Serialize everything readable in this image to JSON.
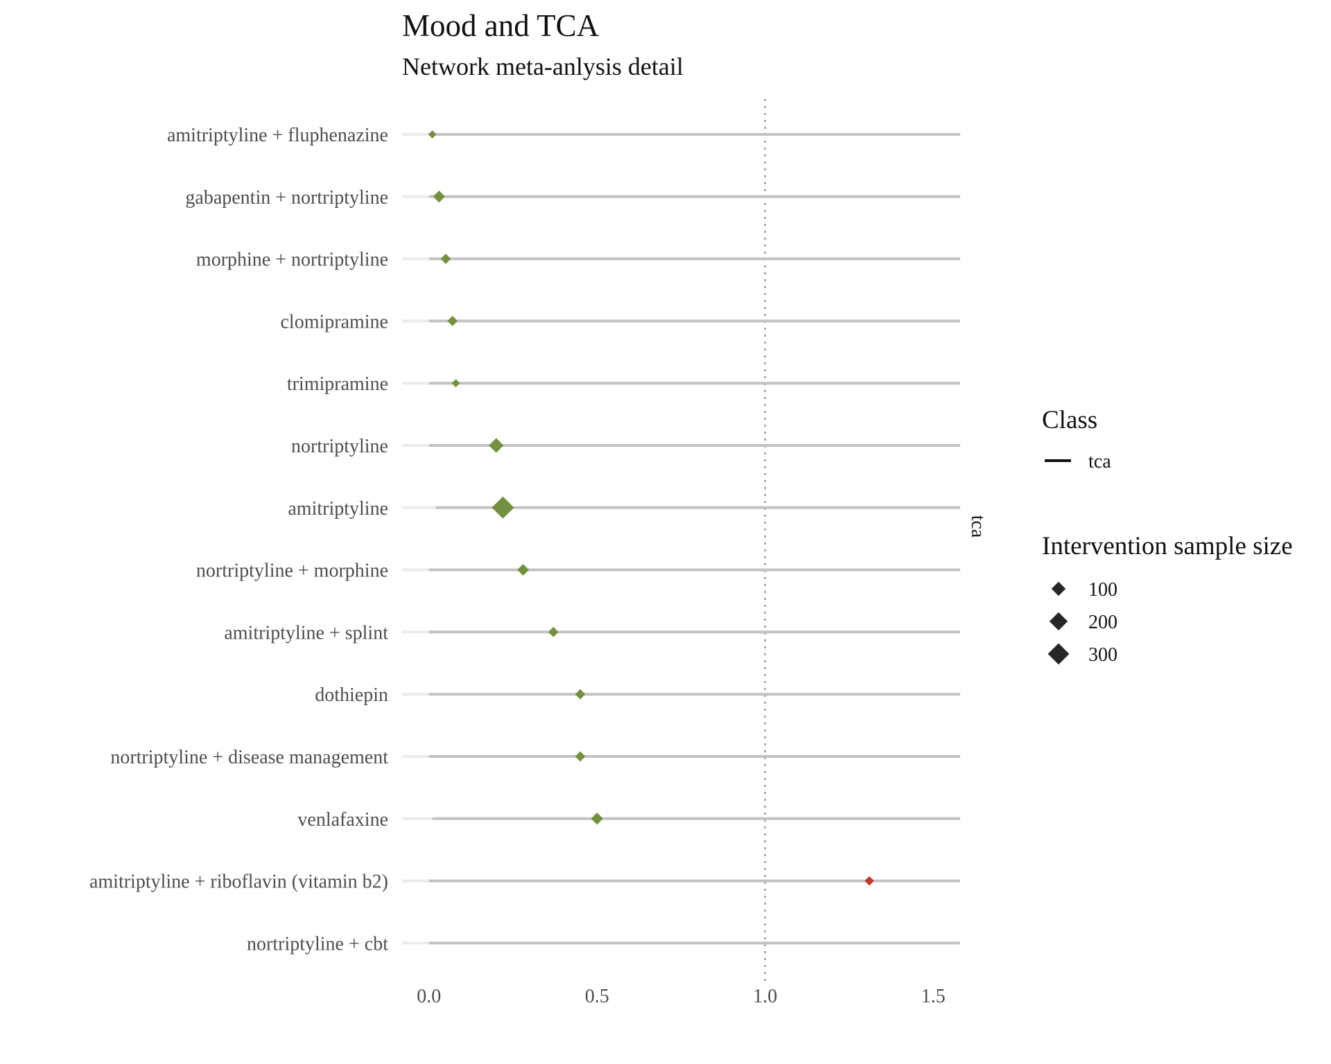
{
  "chart_data": {
    "type": "forest",
    "title": "Mood and TCA",
    "subtitle": "Network meta-anlysis detail",
    "facet_label": "tca",
    "xlim": [
      -0.08,
      1.58
    ],
    "x_ticks": [
      "0.0",
      "0.5",
      "1.0",
      "1.5"
    ],
    "x_tick_values": [
      0,
      0.5,
      1.0,
      1.5
    ],
    "reference_line": 1.0,
    "colors": {
      "favourable": "#72903f",
      "unfavourable": "#c0392b",
      "interval": "#c2c2c2",
      "interval_faint": "#ebebeb",
      "reference": "#9a9a9a",
      "legend_symbol": "#262626"
    },
    "rows": [
      {
        "label": "amitriptyline + fluphenazine",
        "estimate": 0.01,
        "ci_low": 0.0,
        "ci_high": 1.58,
        "n": 15
      },
      {
        "label": "gabapentin + nortriptyline",
        "estimate": 0.03,
        "ci_low": 0.0,
        "ci_high": 1.58,
        "n": 60
      },
      {
        "label": "morphine + nortriptyline",
        "estimate": 0.05,
        "ci_low": 0.0,
        "ci_high": 1.58,
        "n": 35
      },
      {
        "label": "clomipramine",
        "estimate": 0.07,
        "ci_low": 0.0,
        "ci_high": 1.58,
        "n": 35
      },
      {
        "label": "trimipramine",
        "estimate": 0.08,
        "ci_low": 0.0,
        "ci_high": 1.58,
        "n": 15
      },
      {
        "label": "nortriptyline",
        "estimate": 0.2,
        "ci_low": 0.0,
        "ci_high": 1.58,
        "n": 110
      },
      {
        "label": "amitriptyline",
        "estimate": 0.22,
        "ci_low": 0.02,
        "ci_high": 1.58,
        "n": 330
      },
      {
        "label": "nortriptyline + morphine",
        "estimate": 0.28,
        "ci_low": 0.0,
        "ci_high": 1.58,
        "n": 55
      },
      {
        "label": "amitriptyline + splint",
        "estimate": 0.37,
        "ci_low": 0.0,
        "ci_high": 1.58,
        "n": 35
      },
      {
        "label": "dothiepin",
        "estimate": 0.45,
        "ci_low": 0.0,
        "ci_high": 1.58,
        "n": 35
      },
      {
        "label": "nortriptyline + disease management",
        "estimate": 0.45,
        "ci_low": 0.0,
        "ci_high": 1.58,
        "n": 35
      },
      {
        "label": "venlafaxine",
        "estimate": 0.5,
        "ci_low": 0.01,
        "ci_high": 1.58,
        "n": 60
      },
      {
        "label": "amitriptyline + riboflavin (vitamin b2)",
        "estimate": 1.31,
        "ci_low": 0.0,
        "ci_high": 1.58,
        "n": 25
      },
      {
        "label": "nortriptyline + cbt",
        "estimate": null,
        "ci_low": 0.0,
        "ci_high": 1.58,
        "n": null
      }
    ],
    "legend": {
      "class_title": "Class",
      "class_items": [
        "tca"
      ],
      "size_title": "Intervention sample size",
      "size_items": [
        {
          "label": "100",
          "value": 100
        },
        {
          "label": "200",
          "value": 200
        },
        {
          "label": "300",
          "value": 300
        }
      ]
    }
  }
}
